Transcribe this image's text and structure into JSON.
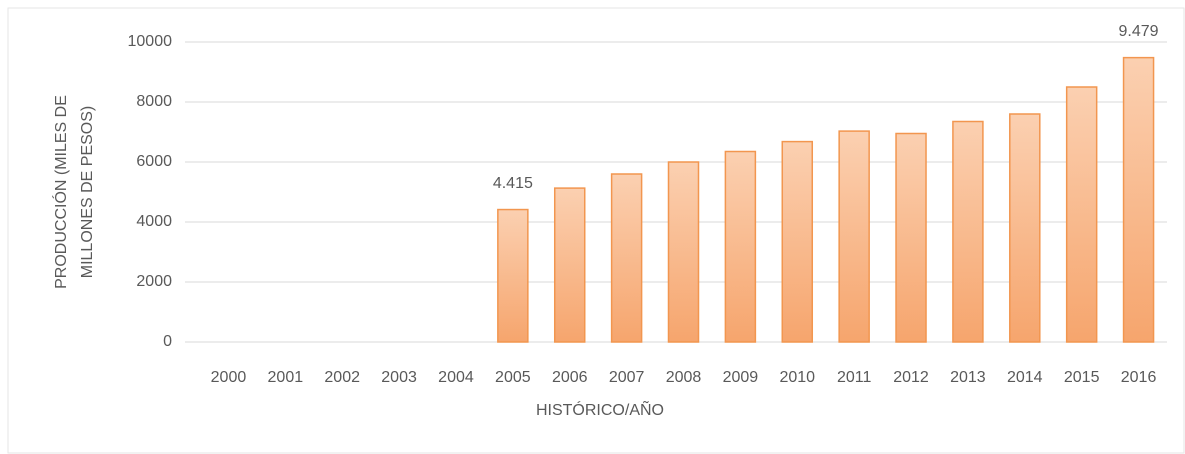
{
  "chart_data": {
    "type": "bar",
    "categories": [
      "2000",
      "2001",
      "2002",
      "2003",
      "2004",
      "2005",
      "2006",
      "2007",
      "2008",
      "2009",
      "2010",
      "2011",
      "2012",
      "2013",
      "2014",
      "2015",
      "2016"
    ],
    "values": [
      null,
      null,
      null,
      null,
      null,
      4415,
      5130,
      5600,
      6000,
      6350,
      6680,
      7030,
      6950,
      7350,
      7600,
      8500,
      9479
    ],
    "value_labels": [
      null,
      null,
      null,
      null,
      null,
      "4.415",
      null,
      null,
      null,
      null,
      null,
      null,
      null,
      null,
      null,
      null,
      "9.479"
    ],
    "color": "#f8b585",
    "ylim": [
      0,
      10000
    ],
    "yticks": [
      0,
      2000,
      4000,
      6000,
      8000,
      10000
    ],
    "grid": true,
    "ylabel": [
      "PRODUCCIÓN (MILES DE",
      "MILLONES DE PESOS)"
    ],
    "xlabel": "HISTÓRICO/AÑO"
  }
}
